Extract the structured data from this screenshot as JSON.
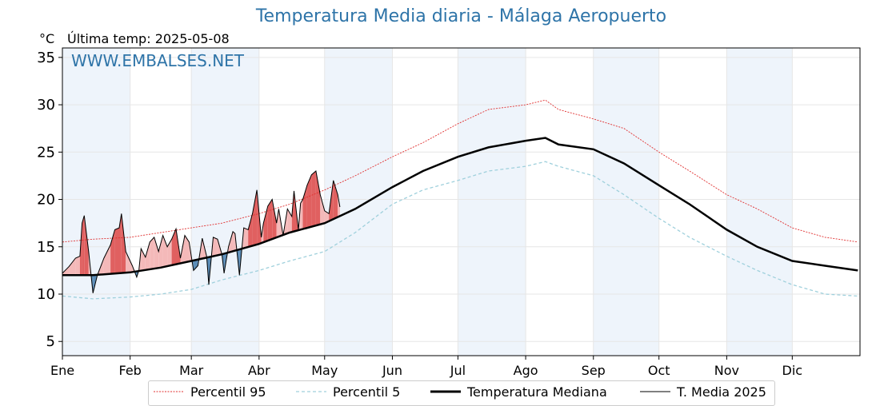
{
  "chart_data": {
    "type": "line",
    "title": "Temperatura Media diaria - Málaga Aeropuerto",
    "unit_label": "°C",
    "last_temp_label": "Última temp: 2025-05-08",
    "watermark": "WWW.EMBALSES.NET",
    "ylim": [
      3.5,
      36
    ],
    "yticks": [
      5,
      10,
      15,
      20,
      25,
      30,
      35
    ],
    "months": [
      "Ene",
      "Feb",
      "Mar",
      "Abr",
      "May",
      "Jun",
      "Jul",
      "Ago",
      "Sep",
      "Oct",
      "Nov",
      "Dic"
    ],
    "month_start_days": [
      1,
      32,
      60,
      91,
      121,
      152,
      182,
      213,
      244,
      274,
      305,
      335
    ],
    "grid": true,
    "legend_position": "bottom",
    "colors": {
      "p95": "#e03030",
      "p5": "#9fd0dc",
      "median": "#000000",
      "current": "#000000",
      "above_fill": "#f4b9b9",
      "above_fill_strong": "#e06060",
      "below_fill": "#5b8db8",
      "band": "#eef4fb",
      "title": "#2e74a8"
    },
    "series": [
      {
        "name": "Percentil 95",
        "key": "p95",
        "x": [
          1,
          15,
          32,
          46,
          60,
          74,
          91,
          105,
          121,
          135,
          152,
          166,
          182,
          196,
          213,
          222,
          228,
          244,
          258,
          274,
          288,
          305,
          319,
          335,
          350,
          365
        ],
        "y": [
          15.5,
          15.8,
          16.0,
          16.5,
          17.0,
          17.5,
          18.5,
          19.5,
          21.0,
          22.5,
          24.5,
          26.0,
          28.0,
          29.5,
          30.0,
          30.5,
          29.5,
          28.5,
          27.5,
          25.0,
          23.0,
          20.5,
          19.0,
          17.0,
          16.0,
          15.5
        ]
      },
      {
        "name": "Percentil 5",
        "key": "p5",
        "x": [
          1,
          15,
          32,
          46,
          60,
          74,
          91,
          105,
          121,
          135,
          152,
          166,
          182,
          196,
          213,
          222,
          228,
          244,
          258,
          274,
          288,
          305,
          319,
          335,
          350,
          365
        ],
        "y": [
          9.8,
          9.5,
          9.7,
          10.0,
          10.5,
          11.5,
          12.5,
          13.5,
          14.5,
          16.5,
          19.5,
          21.0,
          22.0,
          23.0,
          23.5,
          24.0,
          23.5,
          22.5,
          20.5,
          18.0,
          16.0,
          14.0,
          12.5,
          11.0,
          10.0,
          9.8
        ]
      },
      {
        "name": "Temperatura Mediana",
        "key": "median",
        "x": [
          1,
          15,
          32,
          46,
          60,
          74,
          91,
          105,
          121,
          135,
          152,
          166,
          182,
          196,
          213,
          222,
          228,
          244,
          258,
          274,
          288,
          305,
          319,
          335,
          350,
          365
        ],
        "y": [
          12.0,
          12.0,
          12.3,
          12.8,
          13.5,
          14.2,
          15.3,
          16.5,
          17.5,
          19.0,
          21.3,
          23.0,
          24.5,
          25.5,
          26.2,
          26.5,
          25.8,
          25.3,
          23.8,
          21.5,
          19.5,
          16.8,
          15.0,
          13.5,
          13.0,
          12.5
        ]
      },
      {
        "name": "T. Media 2025",
        "key": "current",
        "x": [
          1,
          4,
          7,
          9,
          10,
          11,
          13,
          15,
          17,
          20,
          23,
          25,
          27,
          28,
          30,
          33,
          35,
          36,
          37,
          39,
          41,
          43,
          45,
          47,
          49,
          51,
          53,
          55,
          57,
          59,
          61,
          63,
          65,
          67,
          68,
          70,
          72,
          74,
          75,
          77,
          79,
          80,
          82,
          84,
          86,
          88,
          90,
          92,
          93,
          95,
          97,
          99,
          100,
          102,
          104,
          106,
          107,
          109,
          110,
          111,
          113,
          115,
          117,
          119,
          121,
          123,
          125,
          127,
          128
        ],
        "y": [
          12.2,
          12.9,
          13.8,
          14.0,
          17.5,
          18.3,
          14.5,
          10.1,
          12.0,
          13.8,
          15.2,
          16.8,
          17.0,
          18.5,
          14.5,
          13.0,
          11.8,
          12.5,
          14.8,
          13.9,
          15.5,
          16.0,
          14.5,
          16.2,
          15.0,
          15.8,
          16.9,
          13.8,
          16.2,
          15.5,
          12.5,
          13.0,
          15.9,
          14.0,
          11.0,
          16.0,
          15.8,
          14.2,
          12.2,
          15.0,
          16.6,
          16.4,
          12.0,
          17.0,
          16.8,
          18.5,
          21.0,
          16.0,
          17.5,
          19.3,
          20.0,
          17.5,
          19.0,
          16.2,
          19.0,
          18.2,
          20.9,
          16.8,
          19.6,
          20.0,
          21.5,
          22.6,
          23.0,
          20.5,
          18.8,
          18.5,
          22.0,
          20.5,
          19.2
        ]
      }
    ]
  }
}
